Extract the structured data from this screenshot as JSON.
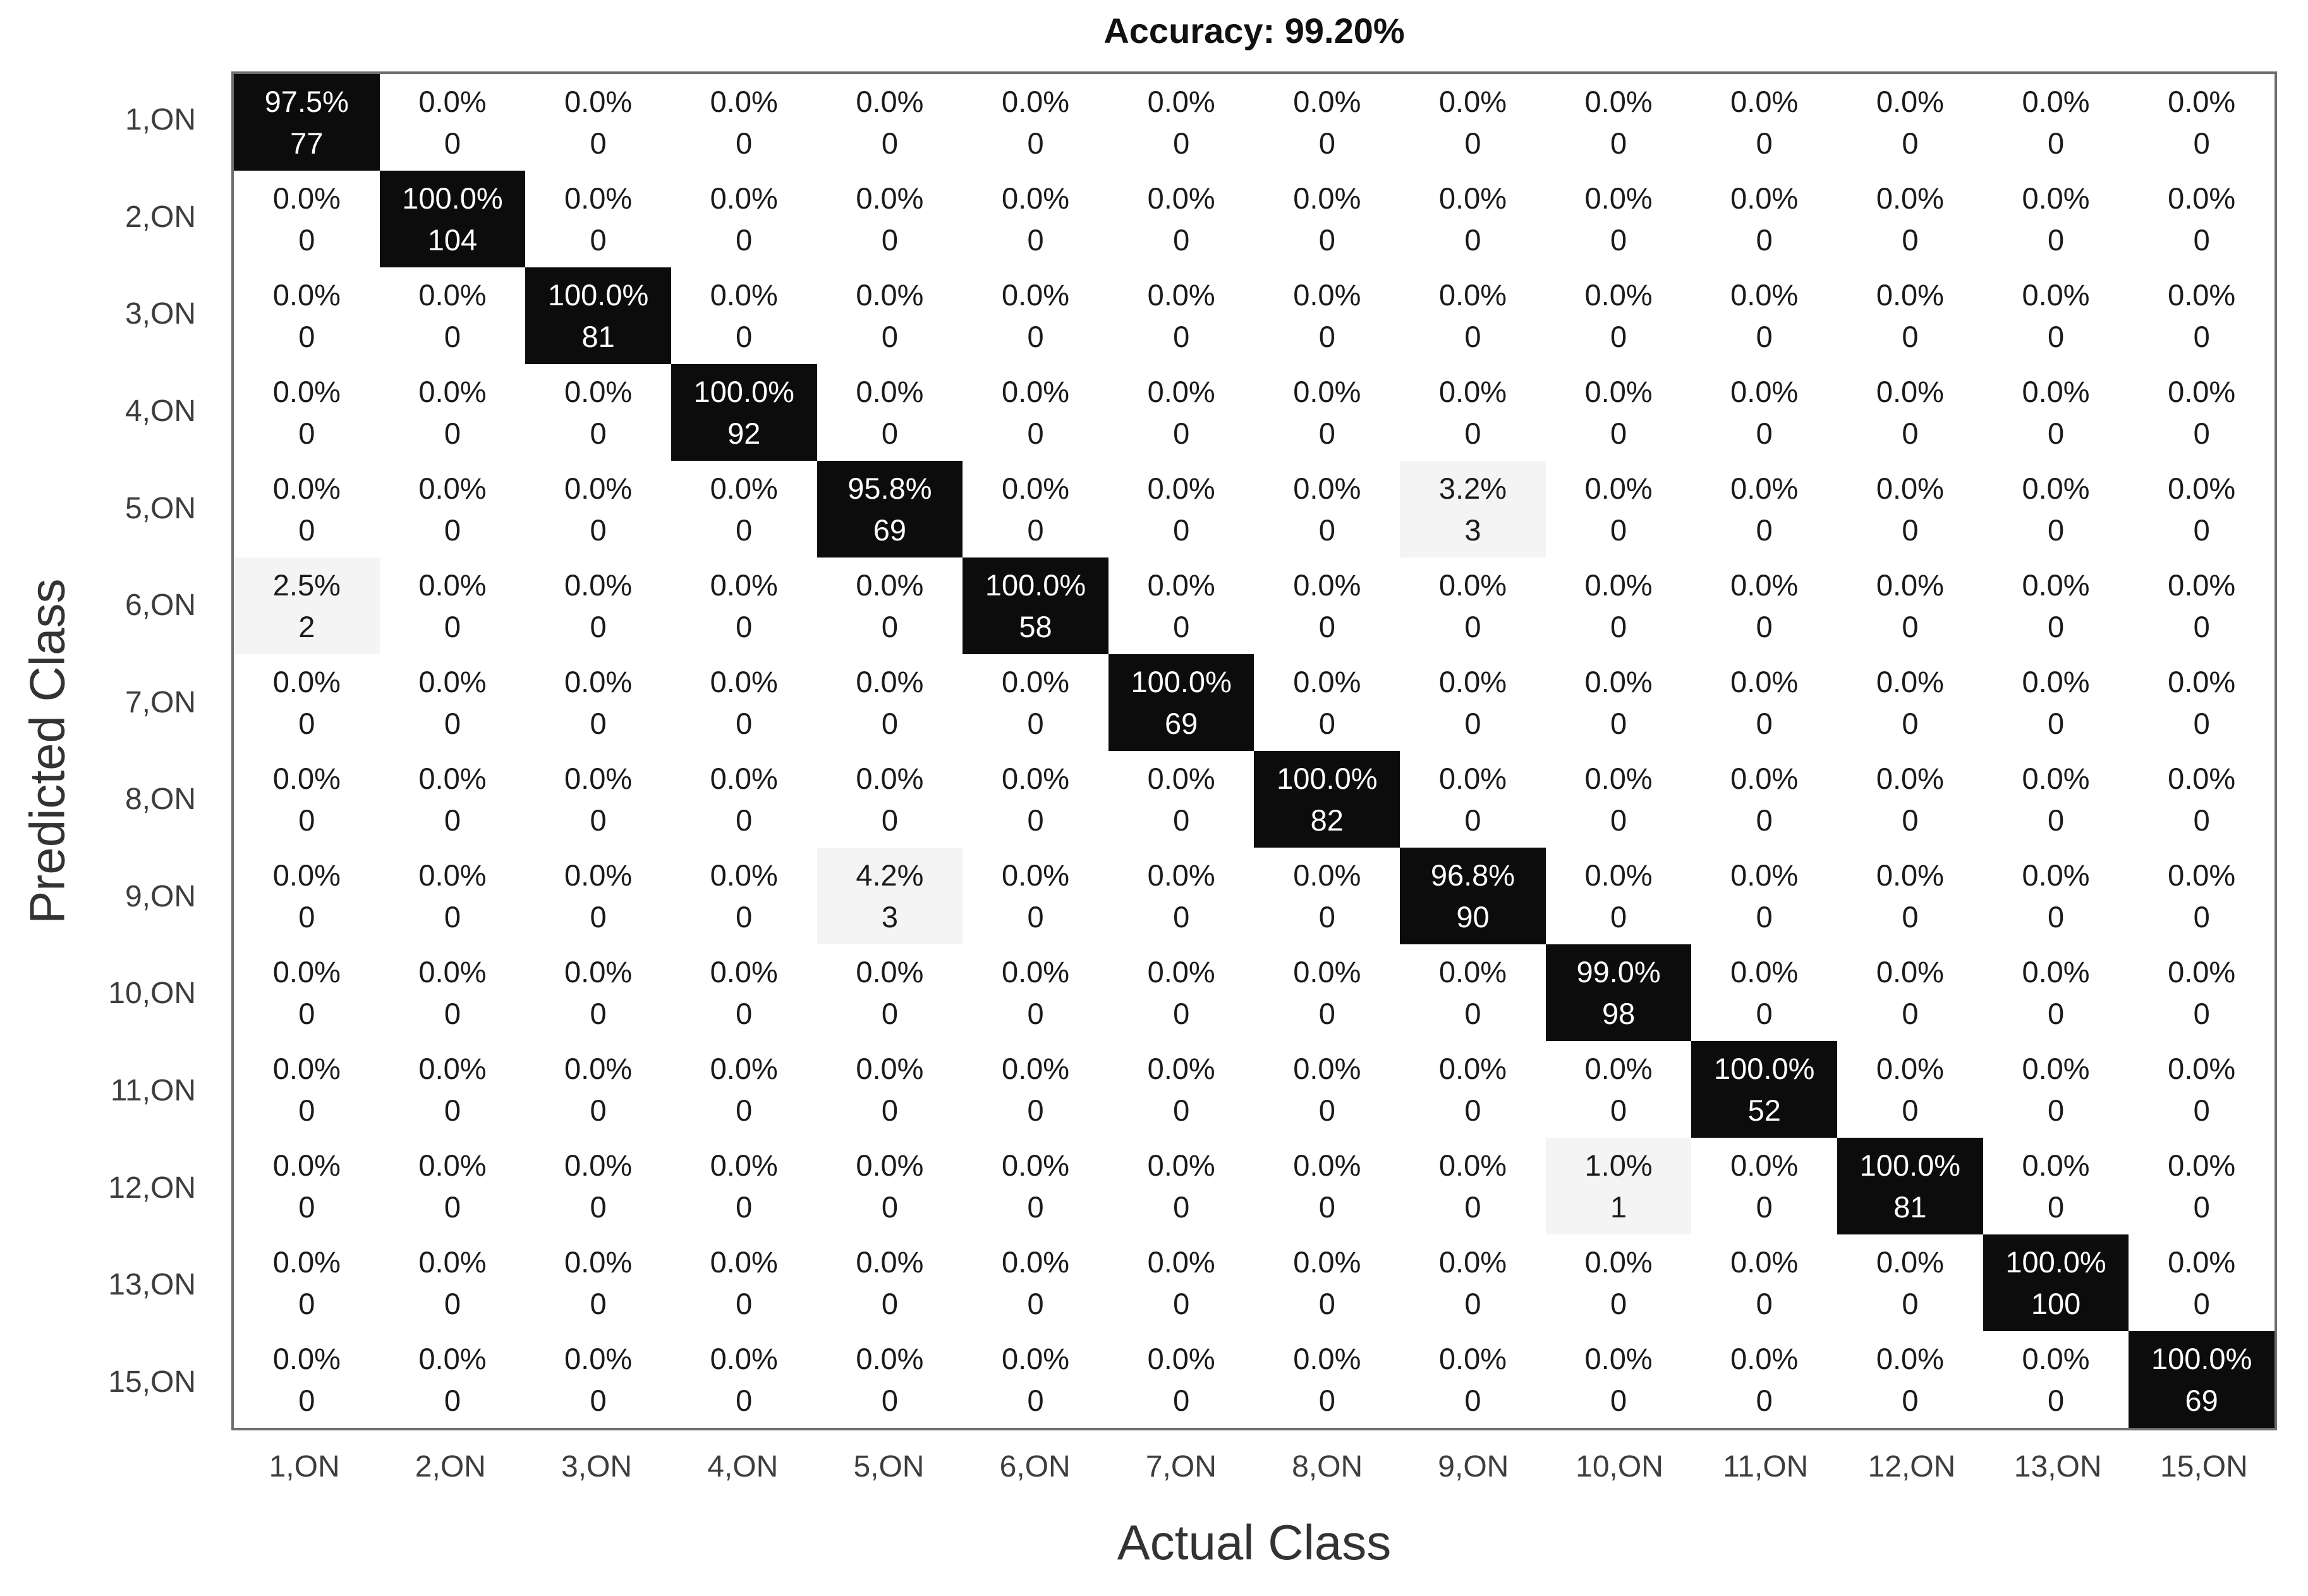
{
  "title": "Accuracy: 99.20%",
  "colors": {
    "diagonal_cell_bg": "#0c0c0c",
    "diagonal_cell_text": "#ffffff",
    "offdiag_highlight_bg": "#f4f4f4",
    "cell_text": "#1a1a1a",
    "tick_label_text": "#3d3d3d",
    "axis_title_text": "#333333",
    "matrix_border": "#6e6e6e"
  },
  "chart_data": {
    "type": "heatmap",
    "subtype": "confusion-matrix",
    "title": "Accuracy: 99.20%",
    "xlabel": "Actual Class",
    "ylabel": "Predicted Class",
    "legend_position": "none",
    "grid": false,
    "classes": [
      "1,ON",
      "2,ON",
      "3,ON",
      "4,ON",
      "5,ON",
      "6,ON",
      "7,ON",
      "8,ON",
      "9,ON",
      "10,ON",
      "11,ON",
      "12,ON",
      "13,ON",
      "15,ON"
    ],
    "cell_format": "column-normalized percent over raw count",
    "percent": [
      [
        "97.5%",
        "0.0%",
        "0.0%",
        "0.0%",
        "0.0%",
        "0.0%",
        "0.0%",
        "0.0%",
        "0.0%",
        "0.0%",
        "0.0%",
        "0.0%",
        "0.0%",
        "0.0%"
      ],
      [
        "0.0%",
        "100.0%",
        "0.0%",
        "0.0%",
        "0.0%",
        "0.0%",
        "0.0%",
        "0.0%",
        "0.0%",
        "0.0%",
        "0.0%",
        "0.0%",
        "0.0%",
        "0.0%"
      ],
      [
        "0.0%",
        "0.0%",
        "100.0%",
        "0.0%",
        "0.0%",
        "0.0%",
        "0.0%",
        "0.0%",
        "0.0%",
        "0.0%",
        "0.0%",
        "0.0%",
        "0.0%",
        "0.0%"
      ],
      [
        "0.0%",
        "0.0%",
        "0.0%",
        "100.0%",
        "0.0%",
        "0.0%",
        "0.0%",
        "0.0%",
        "0.0%",
        "0.0%",
        "0.0%",
        "0.0%",
        "0.0%",
        "0.0%"
      ],
      [
        "0.0%",
        "0.0%",
        "0.0%",
        "0.0%",
        "95.8%",
        "0.0%",
        "0.0%",
        "0.0%",
        "3.2%",
        "0.0%",
        "0.0%",
        "0.0%",
        "0.0%",
        "0.0%"
      ],
      [
        "2.5%",
        "0.0%",
        "0.0%",
        "0.0%",
        "0.0%",
        "100.0%",
        "0.0%",
        "0.0%",
        "0.0%",
        "0.0%",
        "0.0%",
        "0.0%",
        "0.0%",
        "0.0%"
      ],
      [
        "0.0%",
        "0.0%",
        "0.0%",
        "0.0%",
        "0.0%",
        "0.0%",
        "100.0%",
        "0.0%",
        "0.0%",
        "0.0%",
        "0.0%",
        "0.0%",
        "0.0%",
        "0.0%"
      ],
      [
        "0.0%",
        "0.0%",
        "0.0%",
        "0.0%",
        "0.0%",
        "0.0%",
        "0.0%",
        "100.0%",
        "0.0%",
        "0.0%",
        "0.0%",
        "0.0%",
        "0.0%",
        "0.0%"
      ],
      [
        "0.0%",
        "0.0%",
        "0.0%",
        "0.0%",
        "4.2%",
        "0.0%",
        "0.0%",
        "0.0%",
        "96.8%",
        "0.0%",
        "0.0%",
        "0.0%",
        "0.0%",
        "0.0%"
      ],
      [
        "0.0%",
        "0.0%",
        "0.0%",
        "0.0%",
        "0.0%",
        "0.0%",
        "0.0%",
        "0.0%",
        "0.0%",
        "99.0%",
        "0.0%",
        "0.0%",
        "0.0%",
        "0.0%"
      ],
      [
        "0.0%",
        "0.0%",
        "0.0%",
        "0.0%",
        "0.0%",
        "0.0%",
        "0.0%",
        "0.0%",
        "0.0%",
        "0.0%",
        "100.0%",
        "0.0%",
        "0.0%",
        "0.0%"
      ],
      [
        "0.0%",
        "0.0%",
        "0.0%",
        "0.0%",
        "0.0%",
        "0.0%",
        "0.0%",
        "0.0%",
        "0.0%",
        "1.0%",
        "0.0%",
        "100.0%",
        "0.0%",
        "0.0%"
      ],
      [
        "0.0%",
        "0.0%",
        "0.0%",
        "0.0%",
        "0.0%",
        "0.0%",
        "0.0%",
        "0.0%",
        "0.0%",
        "0.0%",
        "0.0%",
        "0.0%",
        "100.0%",
        "0.0%"
      ],
      [
        "0.0%",
        "0.0%",
        "0.0%",
        "0.0%",
        "0.0%",
        "0.0%",
        "0.0%",
        "0.0%",
        "0.0%",
        "0.0%",
        "0.0%",
        "0.0%",
        "0.0%",
        "100.0%"
      ]
    ],
    "counts": [
      [
        77,
        0,
        0,
        0,
        0,
        0,
        0,
        0,
        0,
        0,
        0,
        0,
        0,
        0
      ],
      [
        0,
        104,
        0,
        0,
        0,
        0,
        0,
        0,
        0,
        0,
        0,
        0,
        0,
        0
      ],
      [
        0,
        0,
        81,
        0,
        0,
        0,
        0,
        0,
        0,
        0,
        0,
        0,
        0,
        0
      ],
      [
        0,
        0,
        0,
        92,
        0,
        0,
        0,
        0,
        0,
        0,
        0,
        0,
        0,
        0
      ],
      [
        0,
        0,
        0,
        0,
        69,
        0,
        0,
        0,
        3,
        0,
        0,
        0,
        0,
        0
      ],
      [
        2,
        0,
        0,
        0,
        0,
        58,
        0,
        0,
        0,
        0,
        0,
        0,
        0,
        0
      ],
      [
        0,
        0,
        0,
        0,
        0,
        0,
        69,
        0,
        0,
        0,
        0,
        0,
        0,
        0
      ],
      [
        0,
        0,
        0,
        0,
        0,
        0,
        0,
        82,
        0,
        0,
        0,
        0,
        0,
        0
      ],
      [
        0,
        0,
        0,
        0,
        3,
        0,
        0,
        0,
        90,
        0,
        0,
        0,
        0,
        0
      ],
      [
        0,
        0,
        0,
        0,
        0,
        0,
        0,
        0,
        0,
        98,
        0,
        0,
        0,
        0
      ],
      [
        0,
        0,
        0,
        0,
        0,
        0,
        0,
        0,
        0,
        0,
        52,
        0,
        0,
        0
      ],
      [
        0,
        0,
        0,
        0,
        0,
        0,
        0,
        0,
        0,
        1,
        0,
        81,
        0,
        0
      ],
      [
        0,
        0,
        0,
        0,
        0,
        0,
        0,
        0,
        0,
        0,
        0,
        0,
        100,
        0
      ],
      [
        0,
        0,
        0,
        0,
        0,
        0,
        0,
        0,
        0,
        0,
        0,
        0,
        0,
        69
      ]
    ]
  }
}
